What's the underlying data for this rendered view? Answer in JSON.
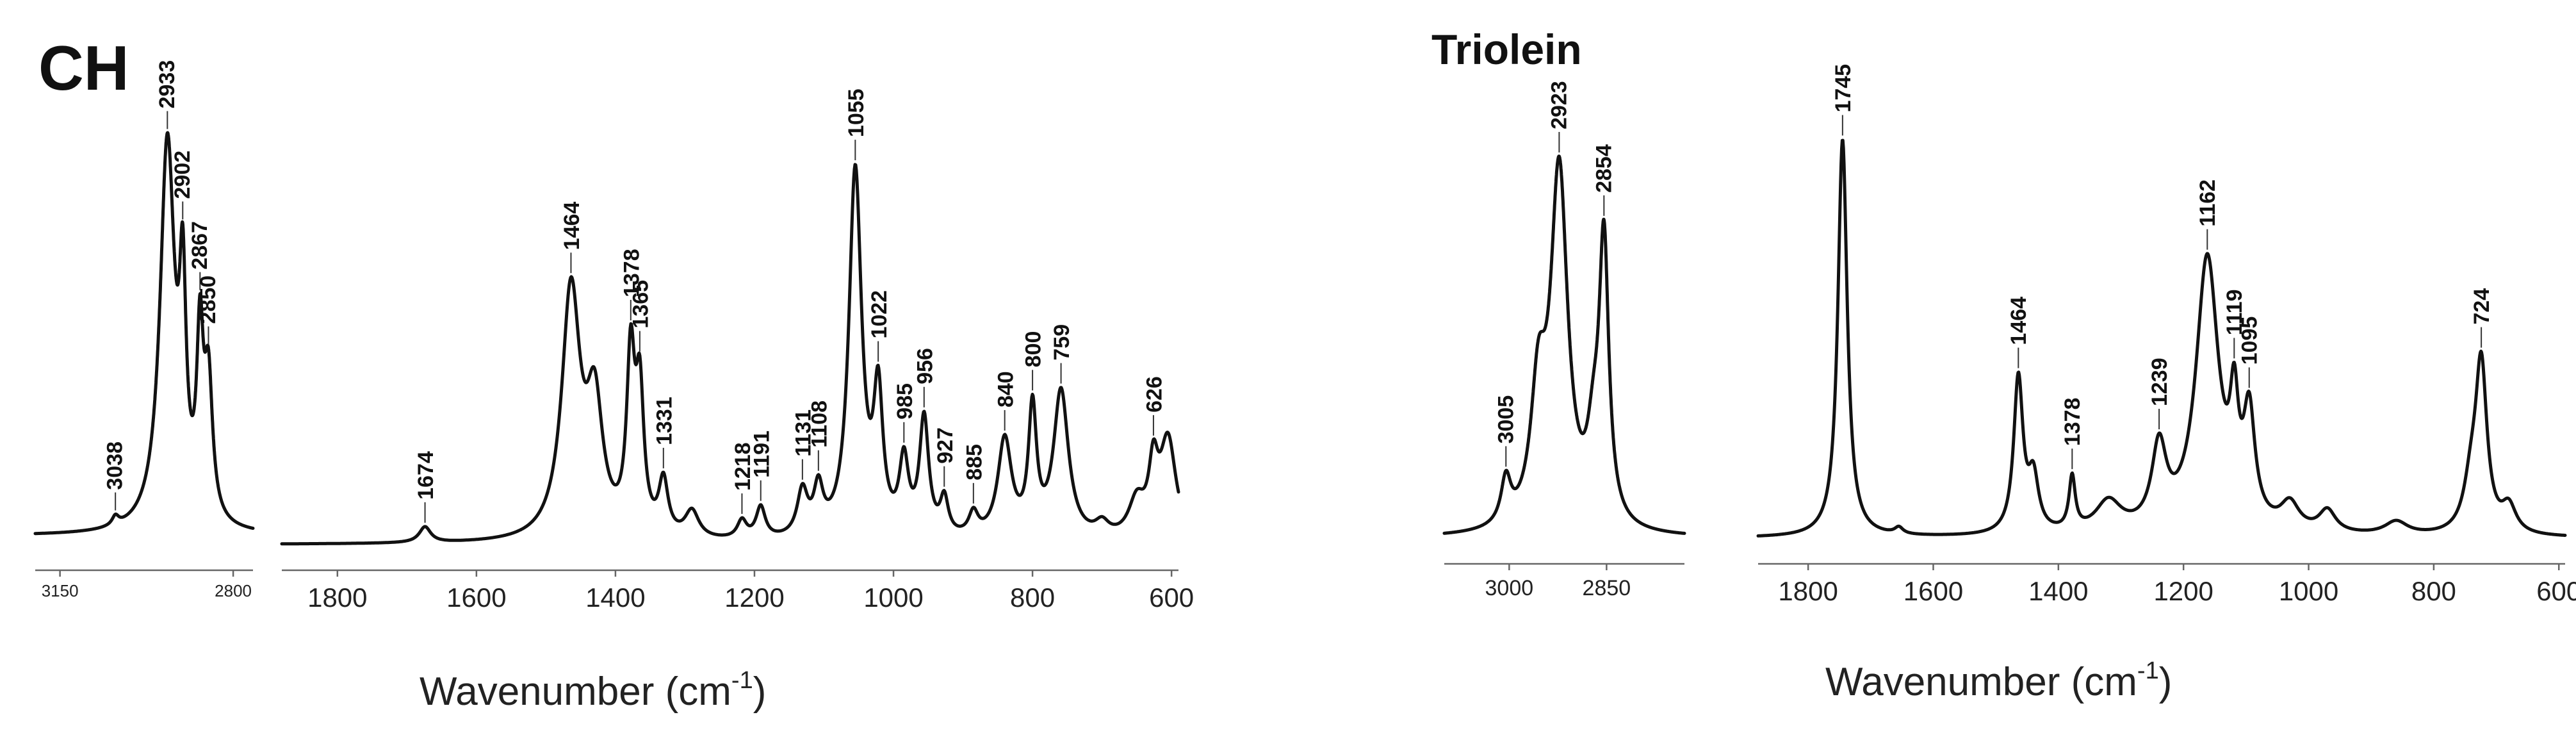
{
  "chart_data": [
    {
      "type": "line",
      "title": "CH",
      "xlabel": "Wavenumber (cm-1)",
      "xlabel_base": "Wavenumber (cm",
      "xlabel_sup": "-1",
      "xlabel_end": ")",
      "segments": [
        {
          "xlim": [
            3200,
            2760
          ],
          "ticks": [
            3150,
            2800
          ],
          "baseline": 0.02,
          "bands": [
            {
              "x": 3038,
              "y": 0.02,
              "w": 8
            },
            {
              "x": 2933,
              "y": 0.86,
              "w": 18
            },
            {
              "x": 2902,
              "y": 0.45,
              "w": 8
            },
            {
              "x": 2867,
              "y": 0.38,
              "w": 8
            },
            {
              "x": 2850,
              "y": 0.3,
              "w": 10
            }
          ],
          "peak_labels": [
            {
              "x": 3038,
              "text": "3038"
            },
            {
              "x": 2933,
              "text": "2933"
            },
            {
              "x": 2902,
              "text": "2902"
            },
            {
              "x": 2867,
              "text": "2867"
            },
            {
              "x": 2850,
              "text": "2850"
            }
          ]
        },
        {
          "xlim": [
            1880,
            590
          ],
          "ticks": [
            1800,
            1600,
            1400,
            1200,
            1000,
            800,
            600
          ],
          "baseline": 0.0,
          "bands": [
            {
              "x": 1674,
              "y": 0.035,
              "w": 10
            },
            {
              "x": 1464,
              "y": 0.55,
              "w": 16
            },
            {
              "x": 1430,
              "y": 0.28,
              "w": 14
            },
            {
              "x": 1378,
              "y": 0.38,
              "w": 7
            },
            {
              "x": 1365,
              "y": 0.3,
              "w": 7
            },
            {
              "x": 1331,
              "y": 0.12,
              "w": 8
            },
            {
              "x": 1290,
              "y": 0.06,
              "w": 12
            },
            {
              "x": 1218,
              "y": 0.04,
              "w": 8
            },
            {
              "x": 1191,
              "y": 0.07,
              "w": 8
            },
            {
              "x": 1131,
              "y": 0.1,
              "w": 9
            },
            {
              "x": 1108,
              "y": 0.1,
              "w": 8
            },
            {
              "x": 1055,
              "y": 0.82,
              "w": 11
            },
            {
              "x": 1022,
              "y": 0.3,
              "w": 8
            },
            {
              "x": 985,
              "y": 0.16,
              "w": 8
            },
            {
              "x": 956,
              "y": 0.26,
              "w": 8
            },
            {
              "x": 927,
              "y": 0.08,
              "w": 7
            },
            {
              "x": 885,
              "y": 0.05,
              "w": 8
            },
            {
              "x": 840,
              "y": 0.22,
              "w": 12
            },
            {
              "x": 800,
              "y": 0.28,
              "w": 7
            },
            {
              "x": 759,
              "y": 0.33,
              "w": 13
            },
            {
              "x": 700,
              "y": 0.03,
              "w": 12
            },
            {
              "x": 650,
              "y": 0.08,
              "w": 14
            },
            {
              "x": 626,
              "y": 0.14,
              "w": 8
            },
            {
              "x": 605,
              "y": 0.22,
              "w": 14
            }
          ],
          "peak_labels": [
            {
              "x": 1674,
              "text": "1674"
            },
            {
              "x": 1464,
              "text": "1464"
            },
            {
              "x": 1378,
              "text": "1378"
            },
            {
              "x": 1365,
              "text": "1365"
            },
            {
              "x": 1331,
              "text": "1331"
            },
            {
              "x": 1218,
              "text": "1218"
            },
            {
              "x": 1191,
              "text": "1191"
            },
            {
              "x": 1131,
              "text": "1131"
            },
            {
              "x": 1108,
              "text": "1108"
            },
            {
              "x": 1055,
              "text": "1055"
            },
            {
              "x": 1022,
              "text": "1022"
            },
            {
              "x": 985,
              "text": "985"
            },
            {
              "x": 956,
              "text": "956"
            },
            {
              "x": 927,
              "text": "927"
            },
            {
              "x": 885,
              "text": "885"
            },
            {
              "x": 840,
              "text": "840"
            },
            {
              "x": 800,
              "text": "800"
            },
            {
              "x": 759,
              "text": "759"
            },
            {
              "x": 626,
              "text": "626"
            }
          ]
        }
      ]
    },
    {
      "type": "line",
      "title": "Triolein",
      "xlabel": "Wavenumber (cm-1)",
      "xlabel_base": "Wavenumber (cm",
      "xlabel_sup": "-1",
      "xlabel_end": ")",
      "segments": [
        {
          "xlim": [
            3100,
            2730
          ],
          "ticks": [
            3000,
            2850
          ],
          "baseline": 0.0,
          "bands": [
            {
              "x": 3005,
              "y": 0.1,
              "w": 9
            },
            {
              "x": 2955,
              "y": 0.28,
              "w": 14
            },
            {
              "x": 2923,
              "y": 0.8,
              "w": 16
            },
            {
              "x": 2870,
              "y": 0.15,
              "w": 12
            },
            {
              "x": 2854,
              "y": 0.62,
              "w": 9
            }
          ],
          "peak_labels": [
            {
              "x": 3005,
              "text": "3005"
            },
            {
              "x": 2923,
              "text": "2923"
            },
            {
              "x": 2854,
              "text": "2854"
            }
          ]
        },
        {
          "xlim": [
            1880,
            590
          ],
          "ticks": [
            1800,
            1600,
            1400,
            1200,
            1000,
            800,
            600
          ],
          "baseline": 0.0,
          "bands": [
            {
              "x": 1745,
              "y": 0.9,
              "w": 9
            },
            {
              "x": 1655,
              "y": 0.015,
              "w": 8
            },
            {
              "x": 1464,
              "y": 0.35,
              "w": 9
            },
            {
              "x": 1440,
              "y": 0.12,
              "w": 10
            },
            {
              "x": 1378,
              "y": 0.12,
              "w": 6
            },
            {
              "x": 1320,
              "y": 0.07,
              "w": 25
            },
            {
              "x": 1239,
              "y": 0.18,
              "w": 14
            },
            {
              "x": 1162,
              "y": 0.62,
              "w": 22
            },
            {
              "x": 1119,
              "y": 0.22,
              "w": 8
            },
            {
              "x": 1095,
              "y": 0.24,
              "w": 11
            },
            {
              "x": 1030,
              "y": 0.06,
              "w": 18
            },
            {
              "x": 970,
              "y": 0.05,
              "w": 16
            },
            {
              "x": 860,
              "y": 0.03,
              "w": 22
            },
            {
              "x": 740,
              "y": 0.1,
              "w": 14
            },
            {
              "x": 724,
              "y": 0.37,
              "w": 11
            },
            {
              "x": 680,
              "y": 0.06,
              "w": 14
            }
          ],
          "peak_labels": [
            {
              "x": 1745,
              "text": "1745"
            },
            {
              "x": 1464,
              "text": "1464"
            },
            {
              "x": 1378,
              "text": "1378"
            },
            {
              "x": 1239,
              "text": "1239"
            },
            {
              "x": 1162,
              "text": "1162"
            },
            {
              "x": 1119,
              "text": "1119"
            },
            {
              "x": 1095,
              "text": "1095"
            },
            {
              "x": 724,
              "text": "724"
            }
          ]
        }
      ]
    }
  ]
}
